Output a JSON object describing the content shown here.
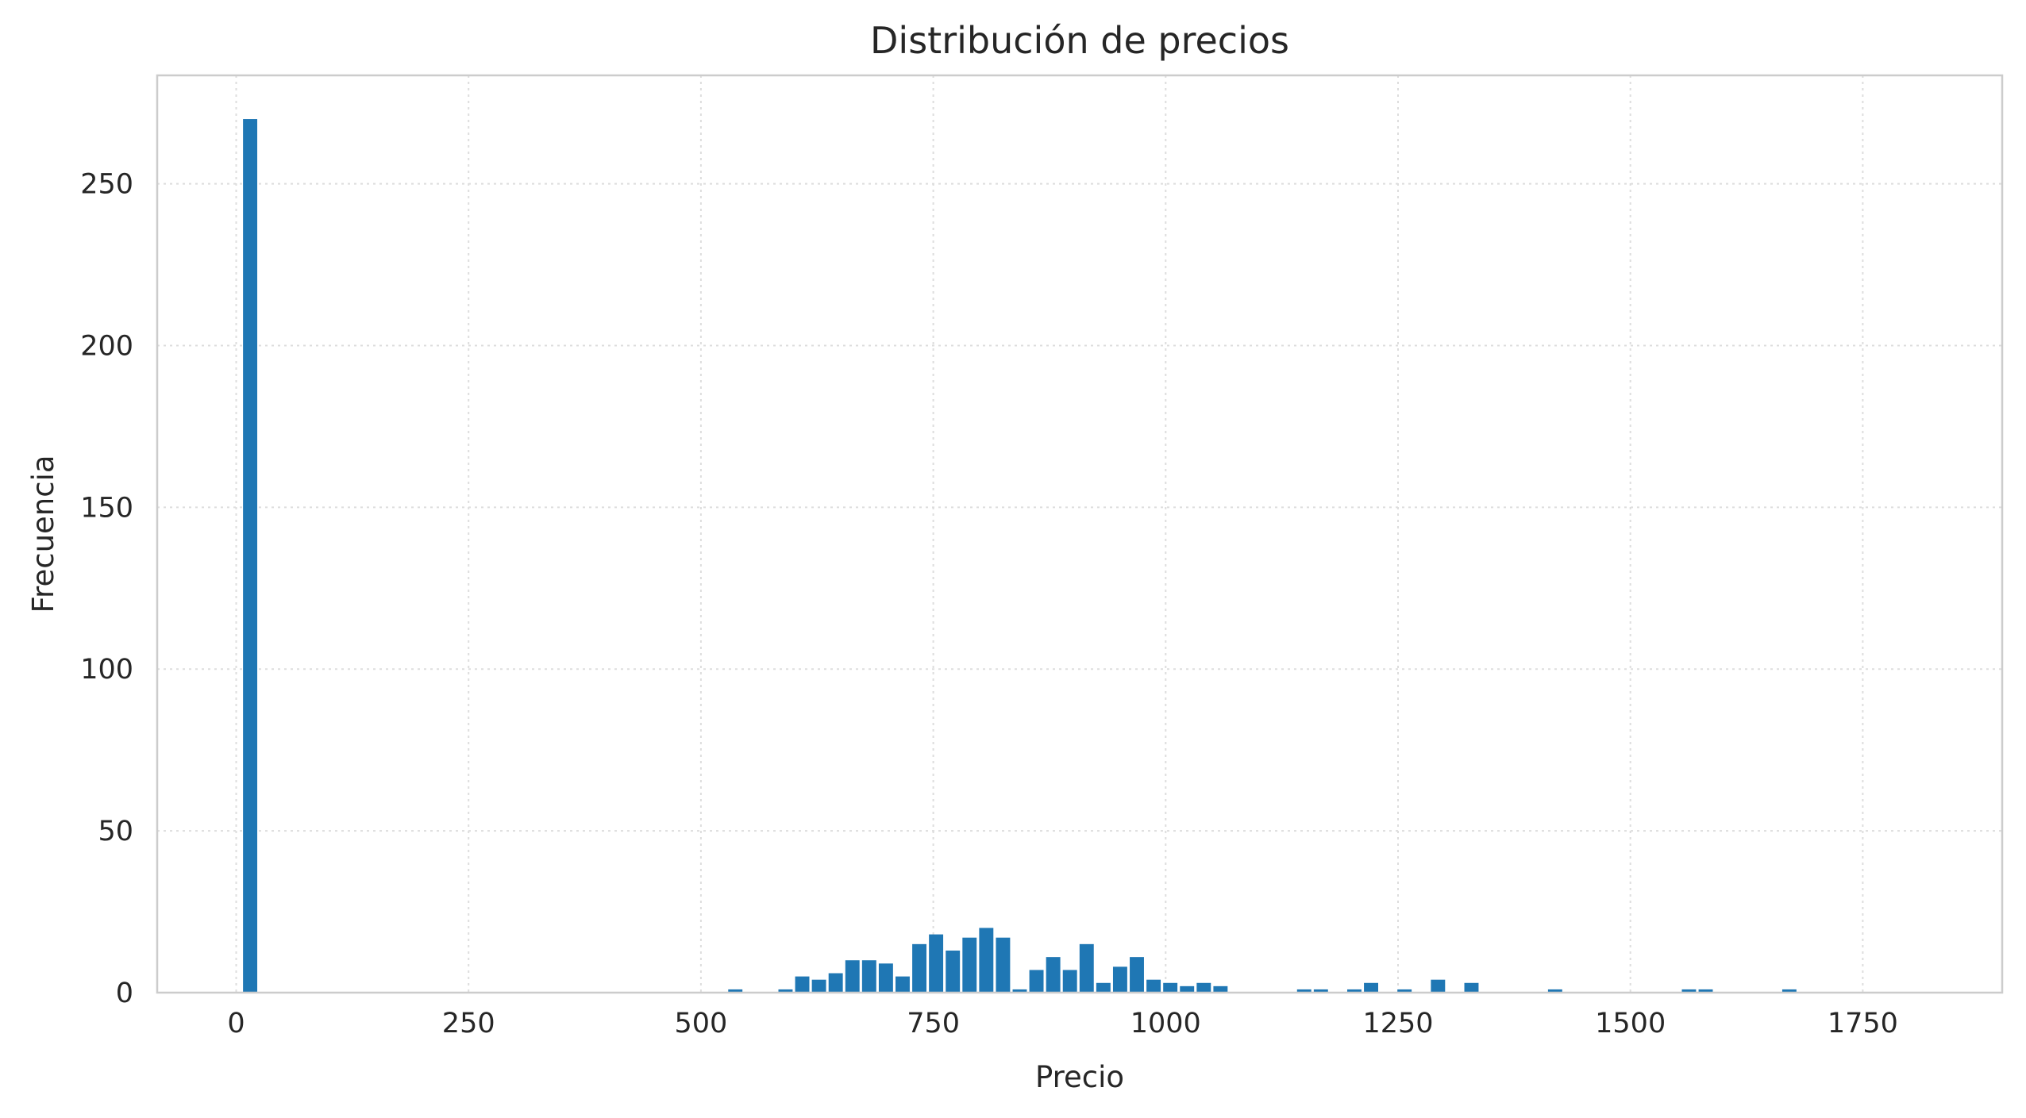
{
  "chart_data": {
    "type": "bar",
    "title": "Distribución de precios",
    "xlabel": "Precio",
    "ylabel": "Frecuencia",
    "xlim": [
      -85,
      1900
    ],
    "ylim": [
      0,
      283.5
    ],
    "xticks": [
      0,
      250,
      500,
      750,
      1000,
      1250,
      1500,
      1750
    ],
    "yticks": [
      0,
      50,
      100,
      150,
      200,
      250
    ],
    "grid": true,
    "bin_width": 18,
    "color": "#1f77b4",
    "bins": [
      {
        "x": 15,
        "value": 270
      },
      {
        "x": 537,
        "value": 1
      },
      {
        "x": 591,
        "value": 1
      },
      {
        "x": 609,
        "value": 5
      },
      {
        "x": 627,
        "value": 4
      },
      {
        "x": 645,
        "value": 6
      },
      {
        "x": 663,
        "value": 10
      },
      {
        "x": 681,
        "value": 10
      },
      {
        "x": 699,
        "value": 9
      },
      {
        "x": 717,
        "value": 5
      },
      {
        "x": 735,
        "value": 15
      },
      {
        "x": 753,
        "value": 18
      },
      {
        "x": 771,
        "value": 13
      },
      {
        "x": 789,
        "value": 17
      },
      {
        "x": 807,
        "value": 20
      },
      {
        "x": 825,
        "value": 17
      },
      {
        "x": 843,
        "value": 1
      },
      {
        "x": 861,
        "value": 7
      },
      {
        "x": 879,
        "value": 11
      },
      {
        "x": 897,
        "value": 7
      },
      {
        "x": 915,
        "value": 15
      },
      {
        "x": 933,
        "value": 3
      },
      {
        "x": 951,
        "value": 8
      },
      {
        "x": 969,
        "value": 11
      },
      {
        "x": 987,
        "value": 4
      },
      {
        "x": 1005,
        "value": 3
      },
      {
        "x": 1023,
        "value": 2
      },
      {
        "x": 1041,
        "value": 3
      },
      {
        "x": 1059,
        "value": 2
      },
      {
        "x": 1149,
        "value": 1
      },
      {
        "x": 1167,
        "value": 1
      },
      {
        "x": 1203,
        "value": 1
      },
      {
        "x": 1221,
        "value": 3
      },
      {
        "x": 1257,
        "value": 1
      },
      {
        "x": 1293,
        "value": 4
      },
      {
        "x": 1329,
        "value": 3
      },
      {
        "x": 1419,
        "value": 1
      },
      {
        "x": 1563,
        "value": 1
      },
      {
        "x": 1581,
        "value": 1
      },
      {
        "x": 1671,
        "value": 1
      }
    ]
  }
}
